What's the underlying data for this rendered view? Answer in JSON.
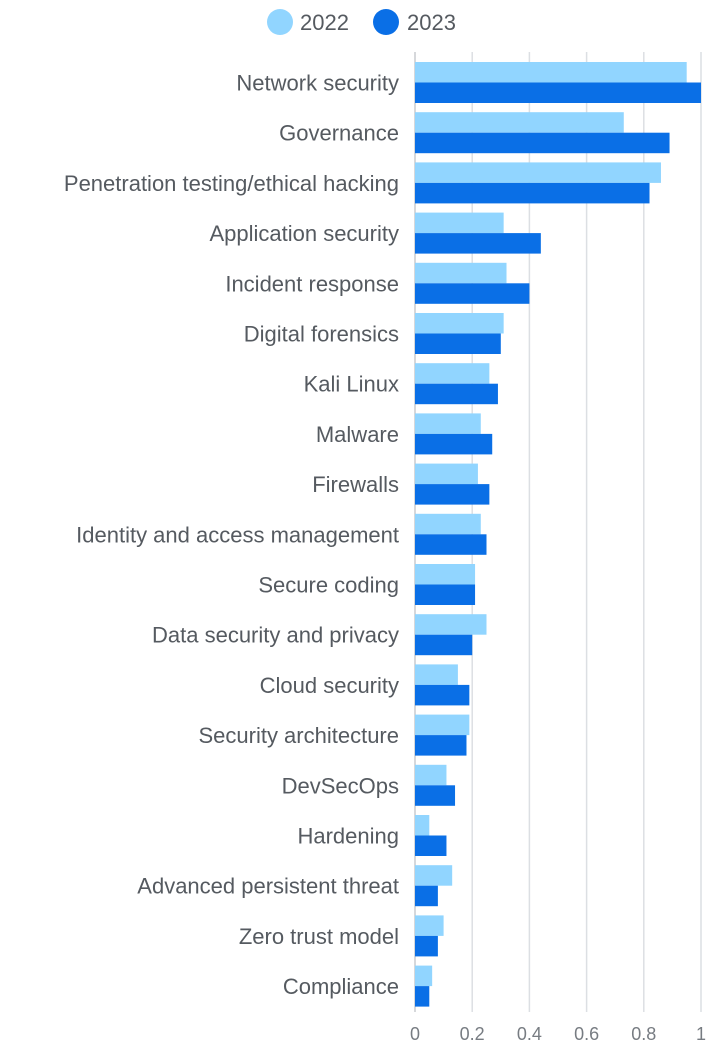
{
  "chart_data": {
    "type": "bar",
    "orientation": "horizontal",
    "categories": [
      "Network security",
      "Governance",
      "Penetration testing/ethical hacking",
      "Application security",
      "Incident response",
      "Digital forensics",
      "Kali Linux",
      "Malware",
      "Firewalls",
      "Identity and access management",
      "Secure coding",
      "Data security and privacy",
      "Cloud security",
      "Security architecture",
      "DevSecOps",
      "Hardening",
      "Advanced persistent threat",
      "Zero trust model",
      "Compliance"
    ],
    "series": [
      {
        "name": "2022",
        "color": "#91d5ff",
        "values": [
          0.95,
          0.73,
          0.86,
          0.31,
          0.32,
          0.31,
          0.26,
          0.23,
          0.22,
          0.23,
          0.21,
          0.25,
          0.15,
          0.19,
          0.11,
          0.05,
          0.13,
          0.1,
          0.06
        ]
      },
      {
        "name": "2023",
        "color": "#0a6fe6",
        "values": [
          1.0,
          0.89,
          0.82,
          0.44,
          0.4,
          0.3,
          0.29,
          0.27,
          0.26,
          0.25,
          0.21,
          0.2,
          0.19,
          0.18,
          0.14,
          0.11,
          0.08,
          0.08,
          0.05
        ]
      }
    ],
    "x_ticks": [
      "0",
      "0.2",
      "0.4",
      "0.6",
      "0.8",
      "1"
    ],
    "xlim": [
      0,
      1
    ],
    "grid": true,
    "legend": "top-center"
  }
}
